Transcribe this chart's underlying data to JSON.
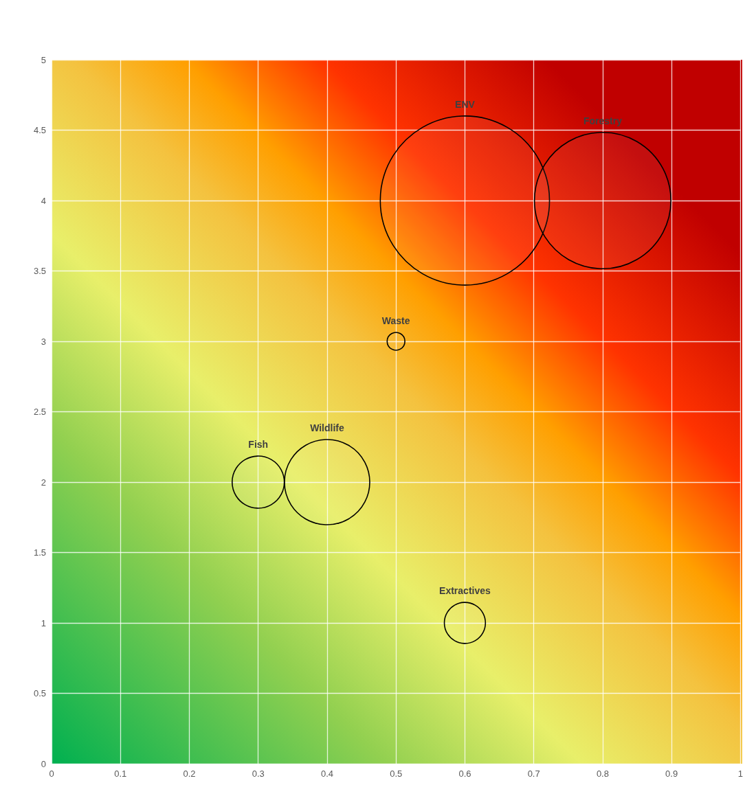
{
  "chart_data": {
    "type": "bubble",
    "series": [
      {
        "color": "#000000",
        "x": [
          0.6,
          0.8,
          0.5,
          0.3,
          0.4,
          0.6
        ],
        "values": [
          4,
          4,
          3,
          2,
          2,
          1
        ],
        "sizes": [
          1,
          0.65,
          0.011,
          0.095,
          0.254,
          0.059
        ],
        "value_labels": [
          "ENV",
          "Forestry",
          "Waste",
          "Fish",
          "Wildlife",
          "Extractives"
        ]
      }
    ],
    "xlim": [
      0,
      1
    ],
    "xticks": [
      0,
      0.1,
      0.2,
      0.3,
      0.4,
      0.5,
      0.6,
      0.7,
      0.8,
      0.9,
      1
    ],
    "ylim": [
      0,
      5
    ],
    "yticks": [
      0,
      0.5,
      1,
      1.5,
      2,
      2.5,
      3,
      3.5,
      4,
      4.5,
      5
    ],
    "grid": true
  }
}
